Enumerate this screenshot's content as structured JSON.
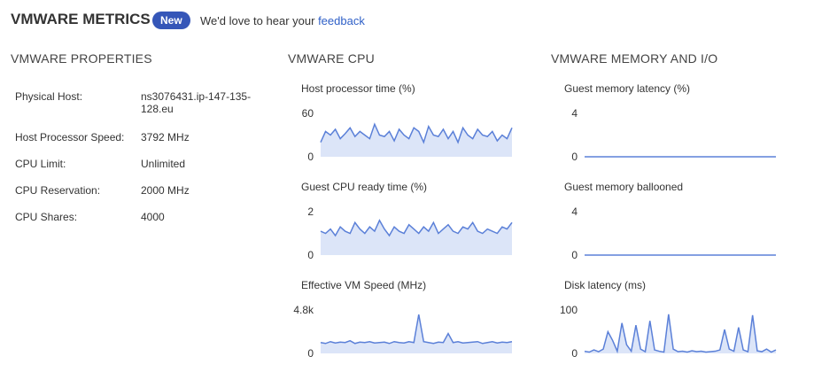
{
  "header": {
    "title": "VMWARE METRICS",
    "badge": "New",
    "message": "We'd love to hear your",
    "link": "feedback"
  },
  "properties": {
    "title": "VMWARE PROPERTIES",
    "rows": [
      [
        "Physical Host:",
        "ns3076431.ip-147-135-128.eu"
      ],
      [
        "Host Processor Speed:",
        "3792 MHz"
      ],
      [
        "CPU Limit:",
        "Unlimited"
      ],
      [
        "CPU Reservation:",
        "2000 MHz"
      ],
      [
        "CPU Shares:",
        "4000"
      ]
    ]
  },
  "cpu": {
    "title": "VMWARE CPU",
    "charts": [
      {
        "type": "line",
        "title": "Host processor time (%)",
        "ylim": [
          0,
          60
        ],
        "yticks": [
          0,
          60
        ],
        "values": [
          20,
          35,
          30,
          38,
          25,
          32,
          40,
          28,
          35,
          30,
          25,
          45,
          30,
          28,
          35,
          22,
          38,
          30,
          25,
          40,
          35,
          20,
          42,
          30,
          28,
          38,
          25,
          35,
          20,
          40,
          30,
          25,
          38,
          30,
          28,
          35,
          22,
          30,
          25,
          40
        ]
      },
      {
        "type": "line",
        "title": "Guest CPU ready time (%)",
        "ylim": [
          0,
          2
        ],
        "yticks": [
          0,
          2
        ],
        "values": [
          1.1,
          1.0,
          1.2,
          0.9,
          1.3,
          1.1,
          1.0,
          1.5,
          1.2,
          1.0,
          1.3,
          1.1,
          1.6,
          1.2,
          0.9,
          1.3,
          1.1,
          1.0,
          1.4,
          1.2,
          1.0,
          1.3,
          1.1,
          1.5,
          1.0,
          1.2,
          1.4,
          1.1,
          1.0,
          1.3,
          1.2,
          1.5,
          1.1,
          1.0,
          1.2,
          1.1,
          1.0,
          1.3,
          1.2,
          1.5
        ]
      },
      {
        "type": "line",
        "title": "Effective VM Speed (MHz)",
        "ylim": [
          0,
          4800
        ],
        "yticks": [
          0,
          {
            "value": 4800,
            "label": "4.8k"
          }
        ],
        "values": [
          1200,
          1100,
          1300,
          1150,
          1250,
          1200,
          1400,
          1100,
          1250,
          1200,
          1300,
          1150,
          1200,
          1250,
          1100,
          1300,
          1200,
          1150,
          1300,
          1200,
          4300,
          1300,
          1200,
          1100,
          1250,
          1200,
          2200,
          1200,
          1300,
          1150,
          1200,
          1250,
          1300,
          1100,
          1200,
          1300,
          1150,
          1250,
          1200,
          1300
        ]
      }
    ]
  },
  "memory": {
    "title": "VMWARE MEMORY AND I/O",
    "charts": [
      {
        "type": "line",
        "title": "Guest memory latency (%)",
        "ylim": [
          0,
          4
        ],
        "yticks": [
          0,
          4
        ],
        "values": [
          0,
          0,
          0,
          0,
          0,
          0,
          0,
          0,
          0,
          0
        ]
      },
      {
        "type": "line",
        "title": "Guest memory ballooned",
        "ylim": [
          0,
          4
        ],
        "yticks": [
          0,
          4
        ],
        "values": [
          0,
          0,
          0,
          0,
          0,
          0,
          0,
          0,
          0,
          0
        ]
      },
      {
        "type": "line",
        "title": "Disk latency (ms)",
        "ylim": [
          0,
          100
        ],
        "yticks": [
          0,
          100
        ],
        "values": [
          5,
          3,
          8,
          4,
          10,
          50,
          30,
          5,
          70,
          20,
          5,
          65,
          10,
          4,
          75,
          8,
          5,
          3,
          90,
          10,
          4,
          5,
          3,
          6,
          4,
          5,
          3,
          4,
          5,
          8,
          55,
          10,
          5,
          60,
          8,
          4,
          88,
          6,
          4,
          10,
          3,
          8
        ]
      }
    ]
  }
}
